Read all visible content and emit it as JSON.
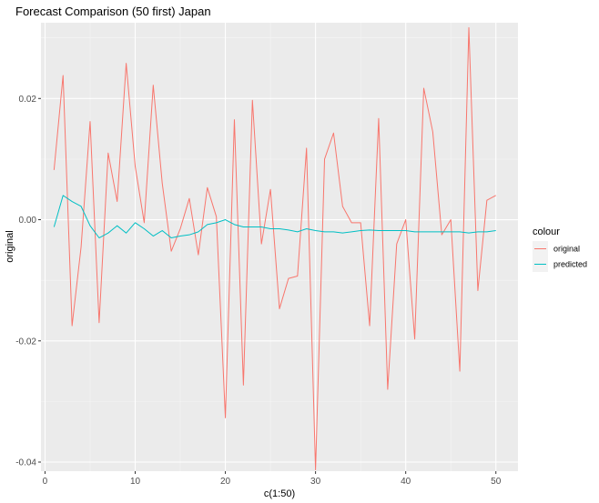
{
  "chart_data": {
    "type": "line",
    "title": "Forecast Comparison (50 first) Japan",
    "xlabel": "c(1:50)",
    "ylabel": "original",
    "xlim": [
      -0.45,
      52.45
    ],
    "ylim": [
      -0.0415,
      0.0325
    ],
    "x_ticks": [
      0,
      10,
      20,
      30,
      40,
      50
    ],
    "x_tick_labels": [
      "0",
      "10",
      "20",
      "30",
      "40",
      "50"
    ],
    "y_ticks": [
      -0.04,
      -0.02,
      0.0,
      0.02
    ],
    "y_tick_labels": [
      "-0.04",
      "-0.02",
      "0.00",
      "0.02"
    ],
    "grid": true,
    "legend_position": "right",
    "legend_title": "colour",
    "x": [
      1,
      2,
      3,
      4,
      5,
      6,
      7,
      8,
      9,
      10,
      11,
      12,
      13,
      14,
      15,
      16,
      17,
      18,
      19,
      20,
      21,
      22,
      23,
      24,
      25,
      26,
      27,
      28,
      29,
      30,
      31,
      32,
      33,
      34,
      35,
      36,
      37,
      38,
      39,
      40,
      41,
      42,
      43,
      44,
      45,
      46,
      47,
      48,
      49,
      50
    ],
    "series": [
      {
        "name": "original",
        "color": "#f8766d",
        "values": [
          0.0082,
          0.0238,
          -0.0175,
          -0.0045,
          0.0162,
          -0.017,
          0.011,
          0.003,
          0.0258,
          0.0088,
          -0.0005,
          0.0222,
          0.006,
          -0.0052,
          -0.0015,
          0.0035,
          -0.0058,
          0.0053,
          0.0005,
          -0.0327,
          0.0165,
          -0.0273,
          0.0197,
          -0.004,
          0.005,
          -0.0147,
          -0.0097,
          -0.0093,
          0.0118,
          -0.0413,
          0.01,
          0.0143,
          0.0022,
          -0.0005,
          -0.0005,
          -0.0175,
          0.0167,
          -0.028,
          -0.004,
          0.0,
          -0.0197,
          0.0217,
          0.0145,
          -0.0025,
          0.0,
          -0.025,
          0.0317,
          -0.0117,
          0.0032,
          0.004
        ]
      },
      {
        "name": "predicted",
        "color": "#00bfc4",
        "values": [
          -0.0012,
          0.004,
          0.003,
          0.0022,
          -0.001,
          -0.003,
          -0.0022,
          -0.001,
          -0.0022,
          -0.0005,
          -0.0015,
          -0.0027,
          -0.0018,
          -0.003,
          -0.0027,
          -0.0025,
          -0.002,
          -0.0008,
          -0.0005,
          0.0,
          -0.0008,
          -0.0012,
          -0.0012,
          -0.0012,
          -0.0015,
          -0.0015,
          -0.0017,
          -0.002,
          -0.0015,
          -0.0018,
          -0.002,
          -0.002,
          -0.0022,
          -0.002,
          -0.0018,
          -0.0017,
          -0.0018,
          -0.0018,
          -0.0018,
          -0.0018,
          -0.002,
          -0.002,
          -0.002,
          -0.002,
          -0.002,
          -0.002,
          -0.0022,
          -0.002,
          -0.002,
          -0.0018
        ]
      }
    ]
  }
}
